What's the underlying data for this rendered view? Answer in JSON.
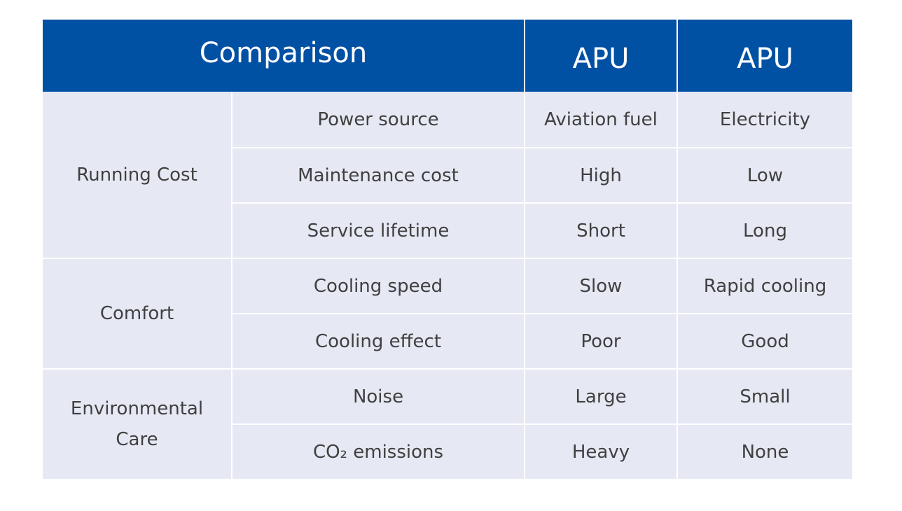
{
  "table": {
    "header": {
      "comparison": "Comparison",
      "col1": "APU",
      "col2": "APU"
    },
    "groups": [
      {
        "category": "Running Cost",
        "rows": [
          {
            "feature": "Power source",
            "col1": "Aviation fuel",
            "col2": "Electricity"
          },
          {
            "feature": "Maintenance cost",
            "col1": "High",
            "col2": "Low"
          },
          {
            "feature": "Service lifetime",
            "col1": "Short",
            "col2": "Long"
          }
        ]
      },
      {
        "category": "Comfort",
        "rows": [
          {
            "feature": "Cooling speed",
            "col1": "Slow",
            "col2": "Rapid cooling"
          },
          {
            "feature": "Cooling effect",
            "col1": "Poor",
            "col2": "Good"
          }
        ]
      },
      {
        "category": "Environmental Care",
        "rows": [
          {
            "feature": "Noise",
            "col1": "Large",
            "col2": "Small"
          },
          {
            "feature": "CO₂ emissions",
            "col1": "Heavy",
            "col2": "None"
          }
        ]
      }
    ]
  },
  "colors": {
    "header_bg": "#0050a4",
    "cell_bg": "#e6e9f4",
    "text": "#404040"
  }
}
